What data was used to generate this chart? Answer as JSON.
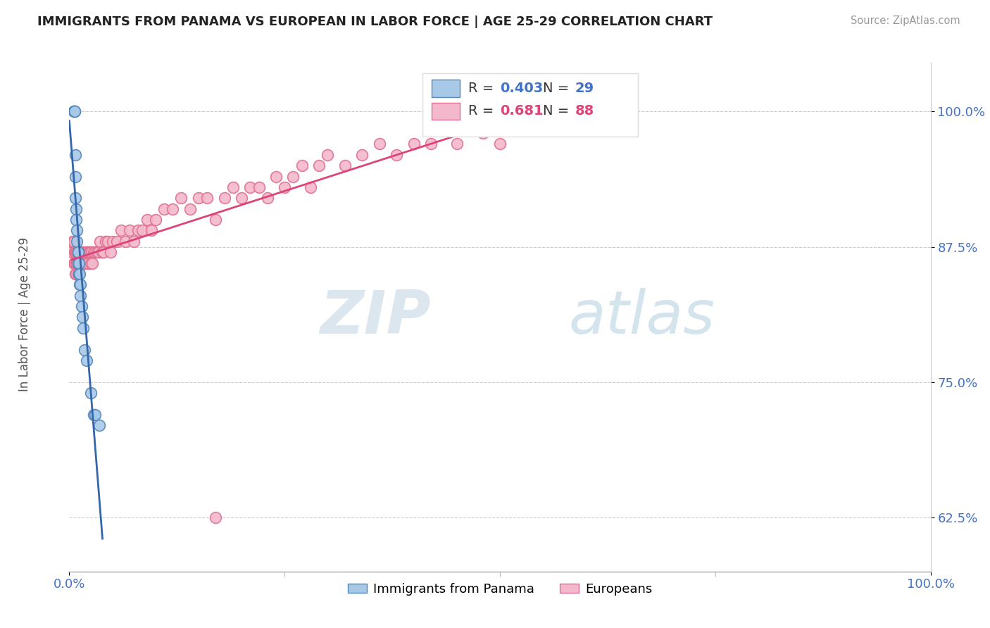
{
  "title": "IMMIGRANTS FROM PANAMA VS EUROPEAN IN LABOR FORCE | AGE 25-29 CORRELATION CHART",
  "source": "Source: ZipAtlas.com",
  "ylabel": "In Labor Force | Age 25-29",
  "y_ticks": [
    0.625,
    0.75,
    0.875,
    1.0
  ],
  "y_tick_labels": [
    "62.5%",
    "75.0%",
    "87.5%",
    "100.0%"
  ],
  "x_tick_labels": [
    "0.0%",
    "100.0%"
  ],
  "xlim": [
    0.0,
    1.0
  ],
  "ylim": [
    0.575,
    1.045
  ],
  "panama_color": "#a8c8e8",
  "european_color": "#f4b8cc",
  "panama_edge_color": "#5588bb",
  "european_edge_color": "#e07090",
  "panama_line_color": "#3366aa",
  "european_line_color": "#dd4477",
  "R_panama": 0.403,
  "N_panama": 29,
  "R_european": 0.681,
  "N_european": 88,
  "watermark_zip": "ZIP",
  "watermark_atlas": "atlas",
  "panama_x": [
    0.005,
    0.005,
    0.006,
    0.006,
    0.007,
    0.007,
    0.007,
    0.008,
    0.008,
    0.009,
    0.009,
    0.01,
    0.01,
    0.01,
    0.011,
    0.011,
    0.012,
    0.012,
    0.013,
    0.013,
    0.014,
    0.015,
    0.016,
    0.018,
    0.02,
    0.025,
    0.028,
    0.03,
    0.035
  ],
  "panama_y": [
    1.0,
    1.0,
    1.0,
    1.0,
    0.96,
    0.94,
    0.92,
    0.91,
    0.9,
    0.89,
    0.88,
    0.87,
    0.87,
    0.86,
    0.86,
    0.85,
    0.85,
    0.84,
    0.84,
    0.83,
    0.82,
    0.81,
    0.8,
    0.78,
    0.77,
    0.74,
    0.72,
    0.72,
    0.71
  ],
  "european_x": [
    0.003,
    0.004,
    0.005,
    0.005,
    0.006,
    0.006,
    0.007,
    0.007,
    0.008,
    0.008,
    0.008,
    0.009,
    0.009,
    0.01,
    0.01,
    0.01,
    0.011,
    0.011,
    0.012,
    0.012,
    0.013,
    0.014,
    0.015,
    0.016,
    0.016,
    0.017,
    0.018,
    0.019,
    0.02,
    0.021,
    0.022,
    0.022,
    0.023,
    0.024,
    0.025,
    0.026,
    0.027,
    0.028,
    0.03,
    0.032,
    0.034,
    0.036,
    0.038,
    0.04,
    0.042,
    0.045,
    0.048,
    0.05,
    0.055,
    0.06,
    0.065,
    0.07,
    0.075,
    0.08,
    0.085,
    0.09,
    0.095,
    0.1,
    0.11,
    0.12,
    0.13,
    0.14,
    0.15,
    0.16,
    0.17,
    0.18,
    0.19,
    0.2,
    0.21,
    0.22,
    0.23,
    0.24,
    0.25,
    0.26,
    0.27,
    0.28,
    0.29,
    0.3,
    0.32,
    0.34,
    0.36,
    0.38,
    0.4,
    0.42,
    0.45,
    0.48,
    0.5,
    0.17
  ],
  "european_y": [
    0.87,
    0.88,
    0.86,
    0.88,
    0.86,
    0.87,
    0.85,
    0.87,
    0.85,
    0.86,
    0.87,
    0.86,
    0.87,
    0.85,
    0.86,
    0.87,
    0.86,
    0.87,
    0.86,
    0.87,
    0.86,
    0.86,
    0.87,
    0.86,
    0.87,
    0.86,
    0.86,
    0.87,
    0.87,
    0.86,
    0.87,
    0.86,
    0.87,
    0.87,
    0.86,
    0.87,
    0.86,
    0.87,
    0.87,
    0.87,
    0.87,
    0.88,
    0.87,
    0.87,
    0.88,
    0.88,
    0.87,
    0.88,
    0.88,
    0.89,
    0.88,
    0.89,
    0.88,
    0.89,
    0.89,
    0.9,
    0.89,
    0.9,
    0.91,
    0.91,
    0.92,
    0.91,
    0.92,
    0.92,
    0.9,
    0.92,
    0.93,
    0.92,
    0.93,
    0.93,
    0.92,
    0.94,
    0.93,
    0.94,
    0.95,
    0.93,
    0.95,
    0.96,
    0.95,
    0.96,
    0.97,
    0.96,
    0.97,
    0.97,
    0.97,
    0.98,
    0.97,
    0.625
  ]
}
